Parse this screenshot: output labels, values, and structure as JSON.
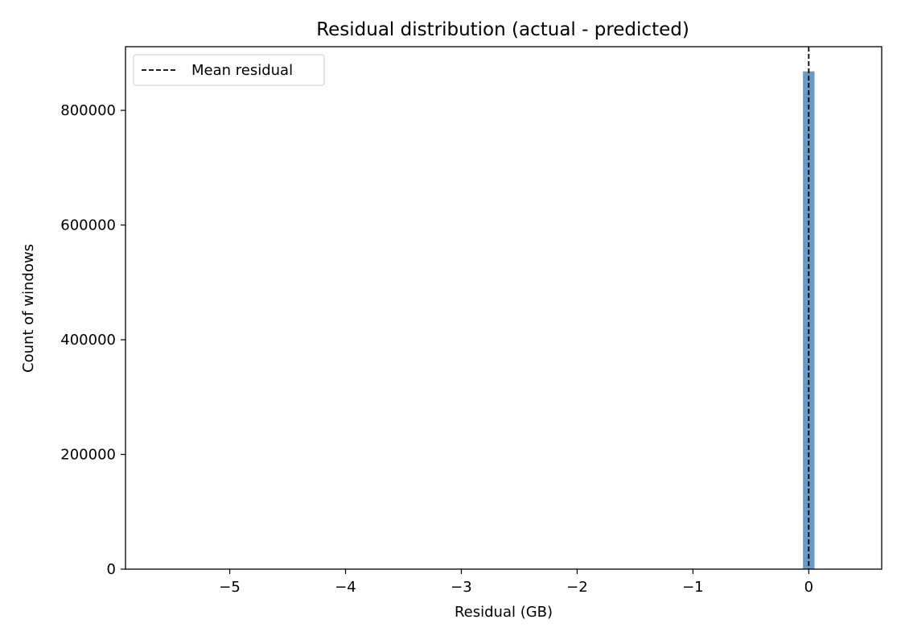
{
  "chart_data": {
    "type": "bar",
    "title": "Residual distribution (actual - predicted)",
    "xlabel": "Residual (GB)",
    "ylabel": "Count of windows",
    "xlim": [
      -5.9,
      0.63
    ],
    "ylim": [
      0,
      911000
    ],
    "xticks": [
      -5,
      -4,
      -3,
      -2,
      -1,
      0
    ],
    "xtick_labels": [
      "−5",
      "−4",
      "−3",
      "−2",
      "−1",
      "0"
    ],
    "yticks": [
      0,
      200000,
      400000,
      600000,
      800000
    ],
    "ytick_labels": [
      "0",
      "200000",
      "400000",
      "600000",
      "800000"
    ],
    "bins": [
      {
        "x0": -0.05,
        "x1": 0.05,
        "count": 868000
      }
    ],
    "mean_residual": 0.0,
    "legend": {
      "placement": "top-left",
      "entries": [
        {
          "label": "Mean residual",
          "style": "dashed",
          "color": "#000000"
        }
      ]
    },
    "grid": false,
    "colors": {
      "bar": "#6c9ac4",
      "mean_line": "#000000",
      "axes": "#000000"
    }
  }
}
